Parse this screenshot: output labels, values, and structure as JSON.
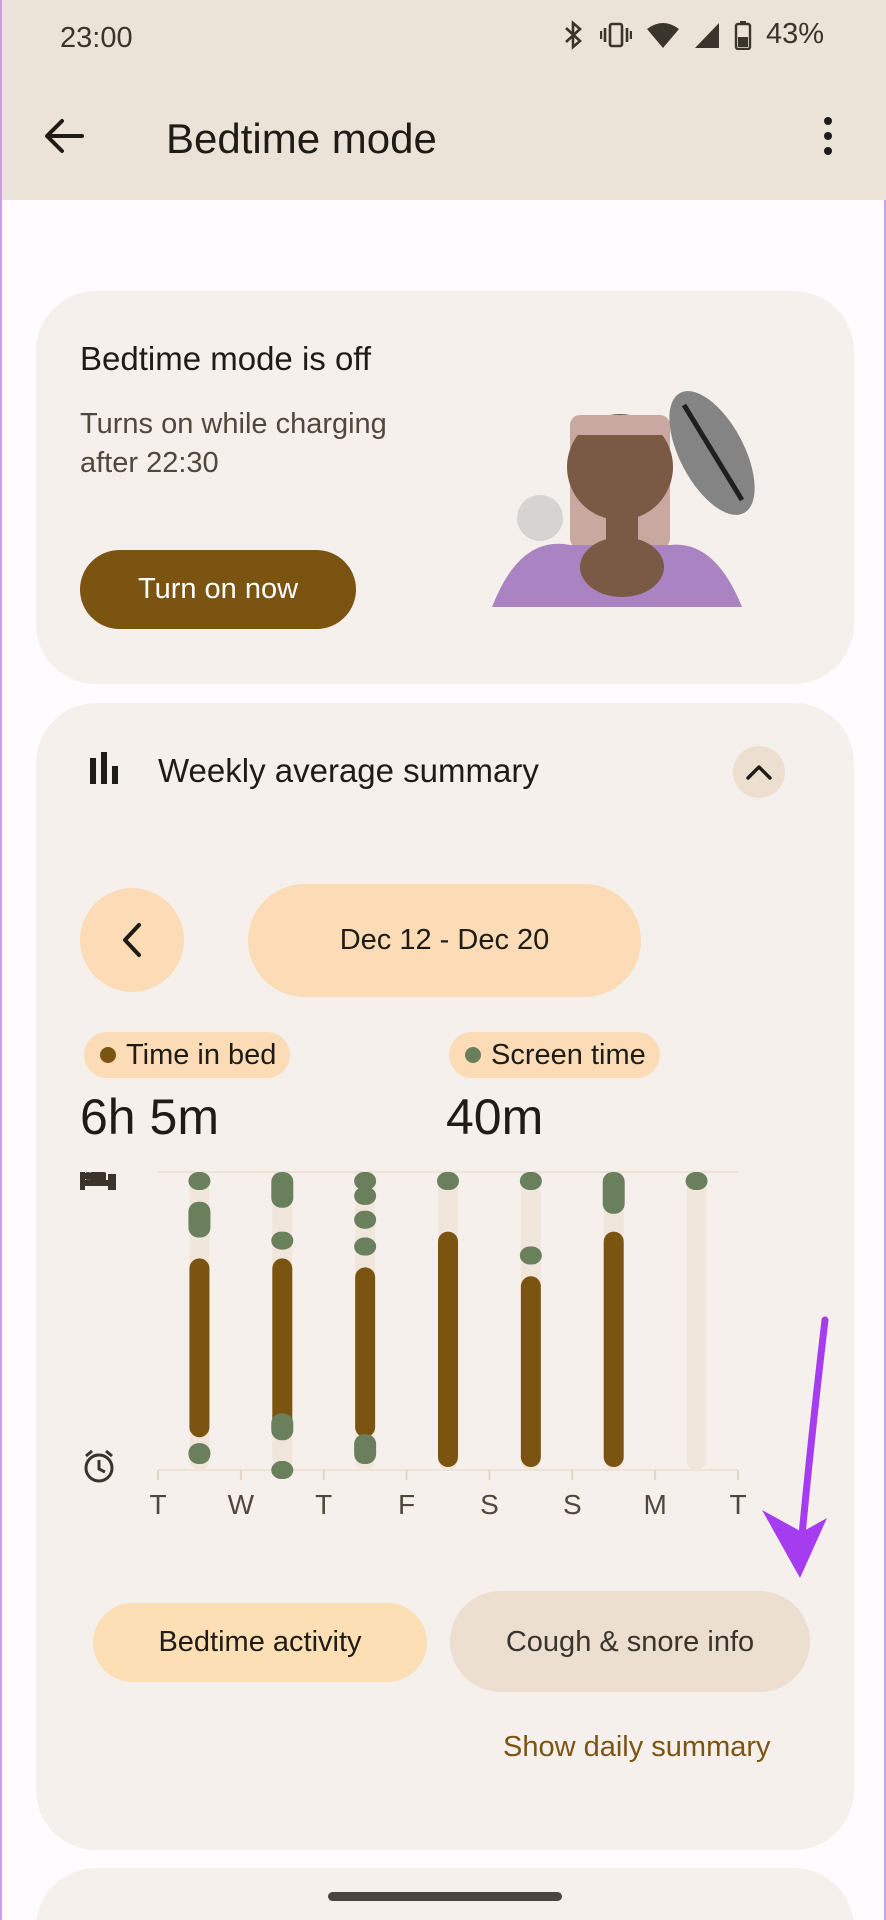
{
  "status_bar": {
    "time": "23:00",
    "battery": "43%"
  },
  "app_bar": {
    "title": "Bedtime mode"
  },
  "status_card": {
    "title": "Bedtime mode is off",
    "subtitle": "Turns on while charging after 22:30",
    "button_label": "Turn on now"
  },
  "weekly": {
    "title": "Weekly average summary",
    "date_range": "Dec 12 - Dec 20",
    "legend": {
      "time_in_bed": {
        "label": "Time in bed",
        "value": "6h 5m",
        "color": "#7b5412"
      },
      "screen_time": {
        "label": "Screen time",
        "value": "40m",
        "color": "#6a7f5c"
      }
    },
    "buttons": {
      "bedtime_activity": "Bedtime activity",
      "cough_snore": "Cough & snore info"
    },
    "daily_summary_link": "Show daily summary"
  },
  "chart_data": {
    "type": "range-bar",
    "x": [
      "T",
      "W",
      "T",
      "F",
      "S",
      "S",
      "M",
      "T"
    ],
    "y_axis_icons": [
      "bed-icon",
      "alarm-icon"
    ],
    "series": [
      {
        "name": "Time in bed",
        "color": "#7b5412",
        "ranges": [
          [
            0.29,
            0.89
          ],
          [
            0.29,
            0.89
          ],
          [
            0.32,
            0.89
          ],
          [
            0.2,
            0.99
          ],
          [
            0.35,
            0.99
          ],
          [
            0.2,
            0.99
          ],
          [],
          []
        ]
      },
      {
        "name": "Screen time",
        "color": "#6a7f5c",
        "segments": [
          [
            [
              0.0,
              0.03
            ],
            [
              0.1,
              0.22
            ],
            [
              0.91,
              0.98
            ]
          ],
          [
            [
              0.0,
              0.12
            ],
            [
              0.2,
              0.23
            ],
            [
              0.81,
              0.9
            ],
            [
              0.97,
              1.0
            ]
          ],
          [
            [
              0.0,
              0.02
            ],
            [
              0.05,
              0.09
            ],
            [
              0.13,
              0.17
            ],
            [
              0.22,
              0.25
            ],
            [
              0.88,
              0.98
            ]
          ],
          [
            [
              0.0,
              0.04
            ]
          ],
          [
            [
              0.0,
              0.02
            ],
            [
              0.25,
              0.29
            ]
          ],
          [
            [
              0.0,
              0.14
            ]
          ],
          [
            [
              0.0,
              0.04
            ]
          ],
          []
        ]
      }
    ]
  }
}
